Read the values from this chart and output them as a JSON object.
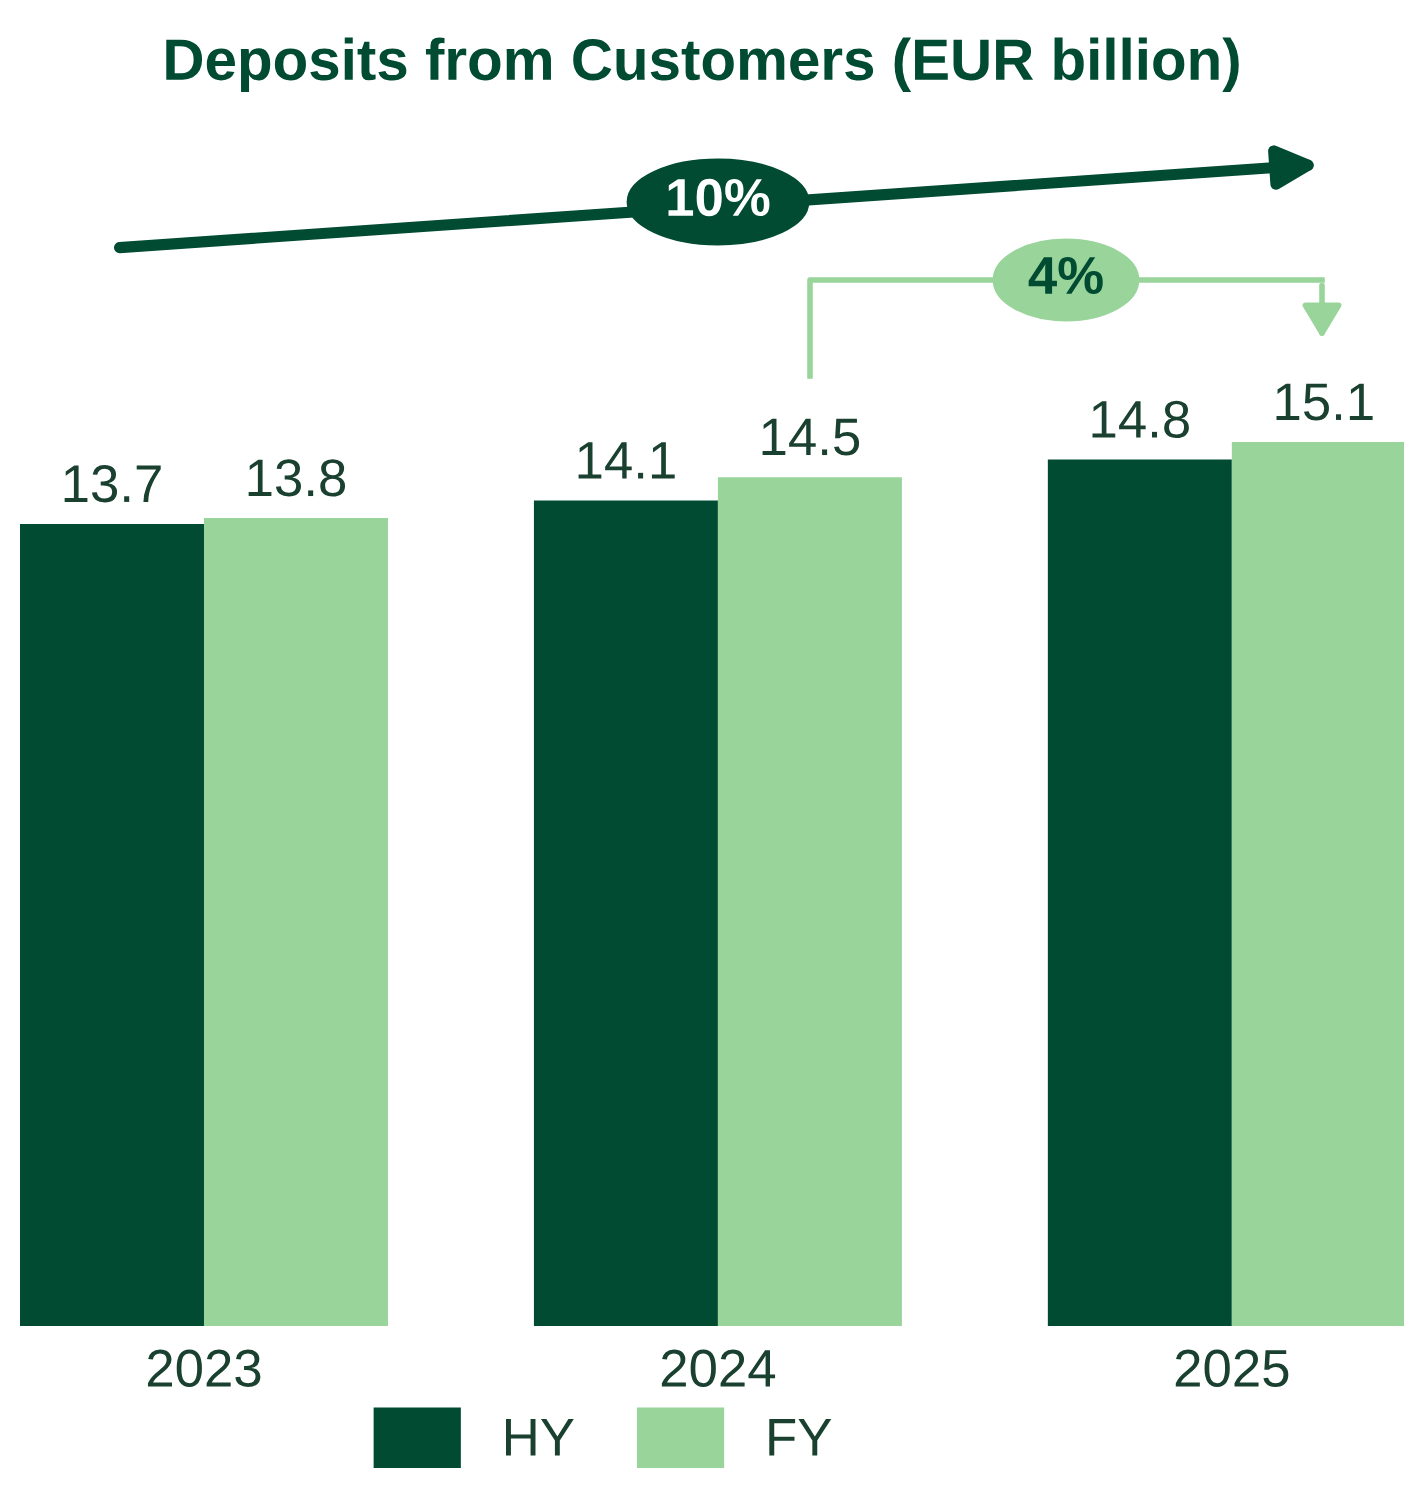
{
  "chart_data": {
    "type": "bar",
    "title": "Deposits from Customers (EUR billion)",
    "categories": [
      "2023",
      "2024",
      "2025"
    ],
    "series": [
      {
        "name": "HY",
        "color": "#004b32",
        "values": [
          13.7,
          14.1,
          14.8
        ]
      },
      {
        "name": "FY",
        "color": "#99d49a",
        "values": [
          13.8,
          14.5,
          15.1
        ]
      }
    ],
    "data_labels": true,
    "legend": "bottom",
    "grid": false,
    "annotations": [
      "10%",
      "4%"
    ]
  }
}
